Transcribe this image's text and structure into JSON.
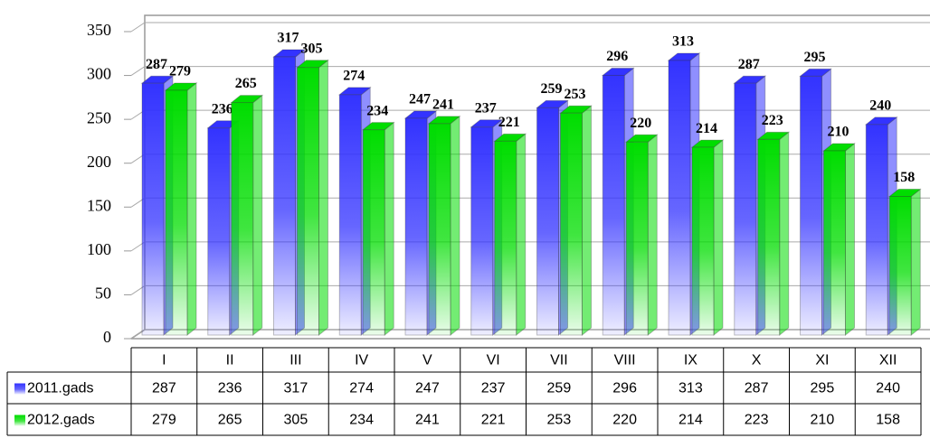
{
  "chart_data": {
    "type": "bar3d",
    "categories": [
      "I",
      "II",
      "III",
      "IV",
      "V",
      "VI",
      "VII",
      "VIII",
      "IX",
      "X",
      "XI",
      "XII"
    ],
    "series": [
      {
        "name": "2011.gads",
        "color": "#3333ff",
        "values": [
          287,
          236,
          317,
          274,
          247,
          237,
          259,
          296,
          313,
          287,
          295,
          240
        ]
      },
      {
        "name": "2012.gads",
        "color": "#00dd00",
        "values": [
          279,
          265,
          305,
          234,
          241,
          221,
          253,
          220,
          214,
          223,
          210,
          158
        ]
      }
    ],
    "ylim": [
      0,
      350
    ],
    "yticks": [
      0,
      50,
      100,
      150,
      200,
      250,
      300,
      350
    ],
    "grid": true
  }
}
